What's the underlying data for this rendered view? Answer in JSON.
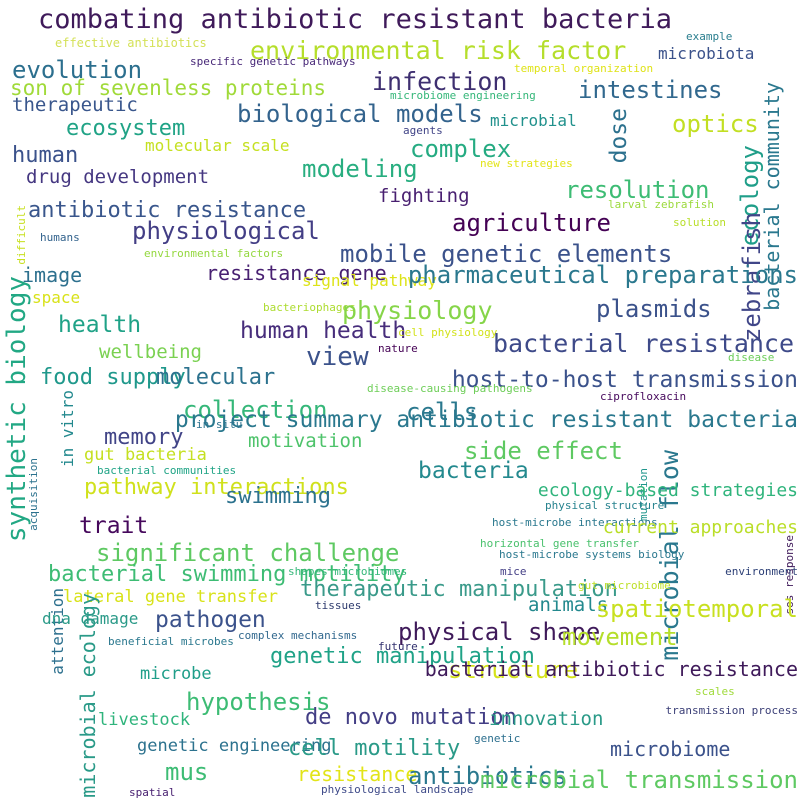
{
  "words": [
    {
      "text": "combating antibiotic resistant bacteria",
      "color": "#3f1a5a"
    },
    {
      "text": "environmental risk factor",
      "color": "#b5de2b"
    },
    {
      "text": "effective antibiotics",
      "color": "#d4e157"
    },
    {
      "text": "example",
      "color": "#2a7e8e"
    },
    {
      "text": "microbiota",
      "color": "#3b528b"
    },
    {
      "text": "evolution",
      "color": "#2c6f8e"
    },
    {
      "text": "specific genetic pathways",
      "color": "#482878"
    },
    {
      "text": "temporal organization",
      "color": "#dfe318"
    },
    {
      "text": "son of sevenless proteins",
      "color": "#a0da39"
    },
    {
      "text": "infection",
      "color": "#3e2f70"
    },
    {
      "text": "intestines",
      "color": "#31688e"
    },
    {
      "text": "therapeutic",
      "color": "#39568c"
    },
    {
      "text": "microbiome engineering",
      "color": "#35b779"
    },
    {
      "text": "biological models",
      "color": "#33638d"
    },
    {
      "text": "bacterial community",
      "color": "#2a788e"
    },
    {
      "text": "microbial",
      "color": "#21918c"
    },
    {
      "text": "optics",
      "color": "#c2df23"
    },
    {
      "text": "ecosystem",
      "color": "#20a386"
    },
    {
      "text": "agents",
      "color": "#414487"
    },
    {
      "text": "dose",
      "color": "#2c718e"
    },
    {
      "text": "human",
      "color": "#3b528b"
    },
    {
      "text": "molecular scale",
      "color": "#c5e021"
    },
    {
      "text": "complex",
      "color": "#25ab82"
    },
    {
      "text": "new strategies",
      "color": "#e2e418"
    },
    {
      "text": "ecology",
      "color": "#1f9e89"
    },
    {
      "text": "drug development",
      "color": "#453781"
    },
    {
      "text": "modeling",
      "color": "#28ae80"
    },
    {
      "text": "resolution",
      "color": "#3dbc74"
    },
    {
      "text": "fighting",
      "color": "#481f70"
    },
    {
      "text": "larval zebrafish",
      "color": "#9bd93c"
    },
    {
      "text": "antibiotic resistance",
      "color": "#39568c"
    },
    {
      "text": "difficult",
      "color": "#c8e020"
    },
    {
      "text": "agriculture",
      "color": "#440154"
    },
    {
      "text": "solution",
      "color": "#b8de29"
    },
    {
      "text": "physiological",
      "color": "#433e85"
    },
    {
      "text": "humans",
      "color": "#33638d"
    },
    {
      "text": "mobile genetic elements",
      "color": "#3b528b"
    },
    {
      "text": "environmental factors",
      "color": "#95d840"
    },
    {
      "text": "zebrafish",
      "color": "#404688"
    },
    {
      "text": "image",
      "color": "#2d708e"
    },
    {
      "text": "resistance gene",
      "color": "#482071"
    },
    {
      "text": "signal pathway",
      "color": "#dde318"
    },
    {
      "text": "pharmaceutical preparations",
      "color": "#2a788e"
    },
    {
      "text": "synthetic biology",
      "color": "#22a884"
    },
    {
      "text": "space",
      "color": "#d8e219"
    },
    {
      "text": "bacteriophages",
      "color": "#addc30"
    },
    {
      "text": "physiology",
      "color": "#86d549"
    },
    {
      "text": "plasmids",
      "color": "#3b528b"
    },
    {
      "text": "health",
      "color": "#1fa287"
    },
    {
      "text": "human health",
      "color": "#472d7b"
    },
    {
      "text": "cell physiology",
      "color": "#d2e21b"
    },
    {
      "text": "bacterial resistance",
      "color": "#3e4a89"
    },
    {
      "text": "wellbeing",
      "color": "#7ad151"
    },
    {
      "text": "nature",
      "color": "#440154"
    },
    {
      "text": "view",
      "color": "#3b528b"
    },
    {
      "text": "disease",
      "color": "#6ccd5a"
    },
    {
      "text": "food supply",
      "color": "#1f988b"
    },
    {
      "text": "molecular",
      "color": "#2c728e"
    },
    {
      "text": "host-to-host transmission",
      "color": "#3b528b"
    },
    {
      "text": "disease-causing pathogens",
      "color": "#6ece58"
    },
    {
      "text": "ciprofloxacin",
      "color": "#46085c"
    },
    {
      "text": "collection",
      "color": "#35b779"
    },
    {
      "text": "cells",
      "color": "#2a788e"
    },
    {
      "text": "project summary antibiotic resistant bacteria",
      "color": "#2a788e"
    },
    {
      "text": "in situ",
      "color": "#2c728e"
    },
    {
      "text": "memory",
      "color": "#414487"
    },
    {
      "text": "motivation",
      "color": "#4ec36b"
    },
    {
      "text": "side effect",
      "color": "#5ec962"
    },
    {
      "text": "gut bacteria",
      "color": "#c5e021"
    },
    {
      "text": "in vitro",
      "color": "#23898e"
    },
    {
      "text": "bacteria",
      "color": "#23898e"
    },
    {
      "text": "bacterial communities",
      "color": "#20a486"
    },
    {
      "text": "microbial flow",
      "color": "#2a788e"
    },
    {
      "text": "mutation",
      "color": "#1f958b"
    },
    {
      "text": "pathway interactions",
      "color": "#d0e11c"
    },
    {
      "text": "swimming",
      "color": "#2c728e"
    },
    {
      "text": "ecology-based strategies",
      "color": "#2fb47c"
    },
    {
      "text": "acquisition",
      "color": "#2c728e"
    },
    {
      "text": "physical structure",
      "color": "#26828e"
    },
    {
      "text": "host-microbe interactions",
      "color": "#2a788e"
    },
    {
      "text": "trait",
      "color": "#46085c"
    },
    {
      "text": "current approaches",
      "color": "#bade28"
    },
    {
      "text": "horizontal gene transfer",
      "color": "#4ac16d"
    },
    {
      "text": "significant challenge",
      "color": "#5ec962"
    },
    {
      "text": "host-microbe systems biology",
      "color": "#2a788e"
    },
    {
      "text": "sos response",
      "color": "#3f1a5a"
    },
    {
      "text": "bacterial swimming motility",
      "color": "#3dbc74"
    },
    {
      "text": "shapes microbiomes",
      "color": "#35b779"
    },
    {
      "text": "mice",
      "color": "#433e85"
    },
    {
      "text": "environment",
      "color": "#2b3e75"
    },
    {
      "text": "therapeutic manipulation",
      "color": "#3a9a8a"
    },
    {
      "text": "gut microbiome",
      "color": "#bddf26"
    },
    {
      "text": "lateral gene transfer",
      "color": "#d8e219"
    },
    {
      "text": "tissues",
      "color": "#2e3b6e"
    },
    {
      "text": "animals",
      "color": "#23898e"
    },
    {
      "text": "spatiotemporal",
      "color": "#c8e020"
    },
    {
      "text": "attention",
      "color": "#2d708e"
    },
    {
      "text": "pathogen",
      "color": "#3b528b"
    },
    {
      "text": "dna damage",
      "color": "#2a9a88"
    },
    {
      "text": "physical shape",
      "color": "#3f1a5a"
    },
    {
      "text": "movement",
      "color": "#b5de2b"
    },
    {
      "text": "microbial ecology",
      "color": "#2a9a88"
    },
    {
      "text": "beneficial microbes",
      "color": "#2a788e"
    },
    {
      "text": "complex mechanisms",
      "color": "#31688e"
    },
    {
      "text": "future",
      "color": "#31306e"
    },
    {
      "text": "genetic manipulation",
      "color": "#1fa287"
    },
    {
      "text": "microbe",
      "color": "#1f9e89"
    },
    {
      "text": "structure",
      "color": "#d5e21a"
    },
    {
      "text": "bacterial antibiotic resistance",
      "color": "#3f1a5a"
    },
    {
      "text": "hypothesis",
      "color": "#3dbc74"
    },
    {
      "text": "scales",
      "color": "#9fda3a"
    },
    {
      "text": "transmission process",
      "color": "#3b3f77"
    },
    {
      "text": "livestock",
      "color": "#2fb47c"
    },
    {
      "text": "de novo mutation",
      "color": "#433e85"
    },
    {
      "text": "innovation",
      "color": "#2a9a88"
    },
    {
      "text": "genetic engineering",
      "color": "#2c728e"
    },
    {
      "text": "cell motility",
      "color": "#2a9a88"
    },
    {
      "text": "microbiome",
      "color": "#3b528b"
    },
    {
      "text": "genetic",
      "color": "#2c6f8e"
    },
    {
      "text": "mus",
      "color": "#3dbc74"
    },
    {
      "text": "resistance",
      "color": "#e2e418"
    },
    {
      "text": "antibiotics",
      "color": "#2a788e"
    },
    {
      "text": "microbial transmission",
      "color": "#5ec962"
    },
    {
      "text": "spatial",
      "color": "#482071"
    },
    {
      "text": "physiological landscape",
      "color": "#3e4a89"
    }
  ]
}
